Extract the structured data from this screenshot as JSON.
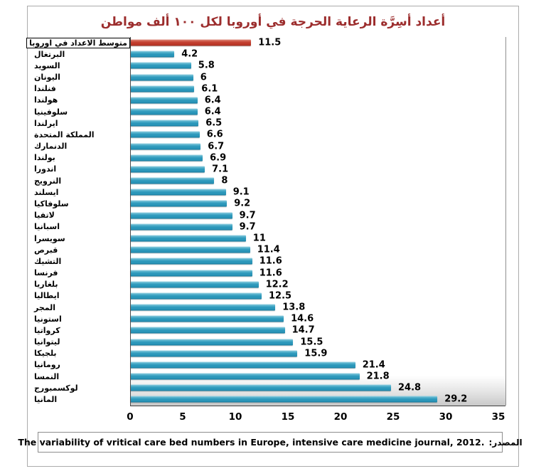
{
  "title": "أعداد أسِرَّة الرعاية الحرجة في أوروبا لكل ١٠٠ ألف مواطن",
  "footer": {
    "text": "The variability of vritical care bed numbers in Europe, intensive care medicine journal, 2012.",
    "source_label": "المصدر:"
  },
  "colors": {
    "title_text": "#9c2d2d",
    "bar_teal": "#2b97ba",
    "bar_red": "#bf3a2b",
    "axis": "#3f3f3f"
  },
  "chart_data": {
    "type": "bar",
    "orientation": "horizontal",
    "title": "أعداد أسِرَّة الرعاية الحرجة في أوروبا لكل ١٠٠ ألف مواطن",
    "xlabel": "",
    "ylabel": "",
    "xlim": [
      0,
      35
    ],
    "xticks": [
      0,
      5,
      10,
      15,
      20,
      25,
      30,
      35
    ],
    "grid": false,
    "legend": false,
    "highlight_index": 0,
    "categories": [
      "متوسط الاعداد في اوروبا",
      "البرتغال",
      "السويد",
      "اليونان",
      "فنلندا",
      "هولندا",
      "سلوفينيا",
      "ايرلندا",
      "المملكة المتحدة",
      "الدنمارك",
      "بولندا",
      "اندورا",
      "النرويج",
      "ايسلند",
      "سلوفاكيا",
      "لاتفيا",
      "اسبانيا",
      "سويسرا",
      "قبرص",
      "التشيك",
      "فرنسا",
      "بلغاريا",
      "ايطاليا",
      "المجر",
      "استونيا",
      "كرواتيا",
      "ليتوانيا",
      "بلجيكا",
      "رومانيا",
      "النمسا",
      "لوكسمبورج",
      "المانيا"
    ],
    "values": [
      11.5,
      4.2,
      5.8,
      6,
      6.1,
      6.4,
      6.4,
      6.5,
      6.6,
      6.7,
      6.9,
      7.1,
      8,
      9.1,
      9.2,
      9.7,
      9.7,
      11,
      11.4,
      11.6,
      11.6,
      12.2,
      12.5,
      13.8,
      14.6,
      14.7,
      15.5,
      15.9,
      21.4,
      21.8,
      24.8,
      29.2
    ],
    "value_labels": [
      "11.5",
      "4.2",
      "5.8",
      "6",
      "6.1",
      "6.4",
      "6.4",
      "6.5",
      "6.6",
      "6.7",
      "6.9",
      "7.1",
      "8",
      "9.1",
      "9.2",
      "9.7",
      "9.7",
      "11",
      "11.4",
      "11.6",
      "11.6",
      "12.2",
      "12.5",
      "13.8",
      "14.6",
      "14.7",
      "15.5",
      "15.9",
      "21.4",
      "21.8",
      "24.8",
      "29.2"
    ]
  }
}
